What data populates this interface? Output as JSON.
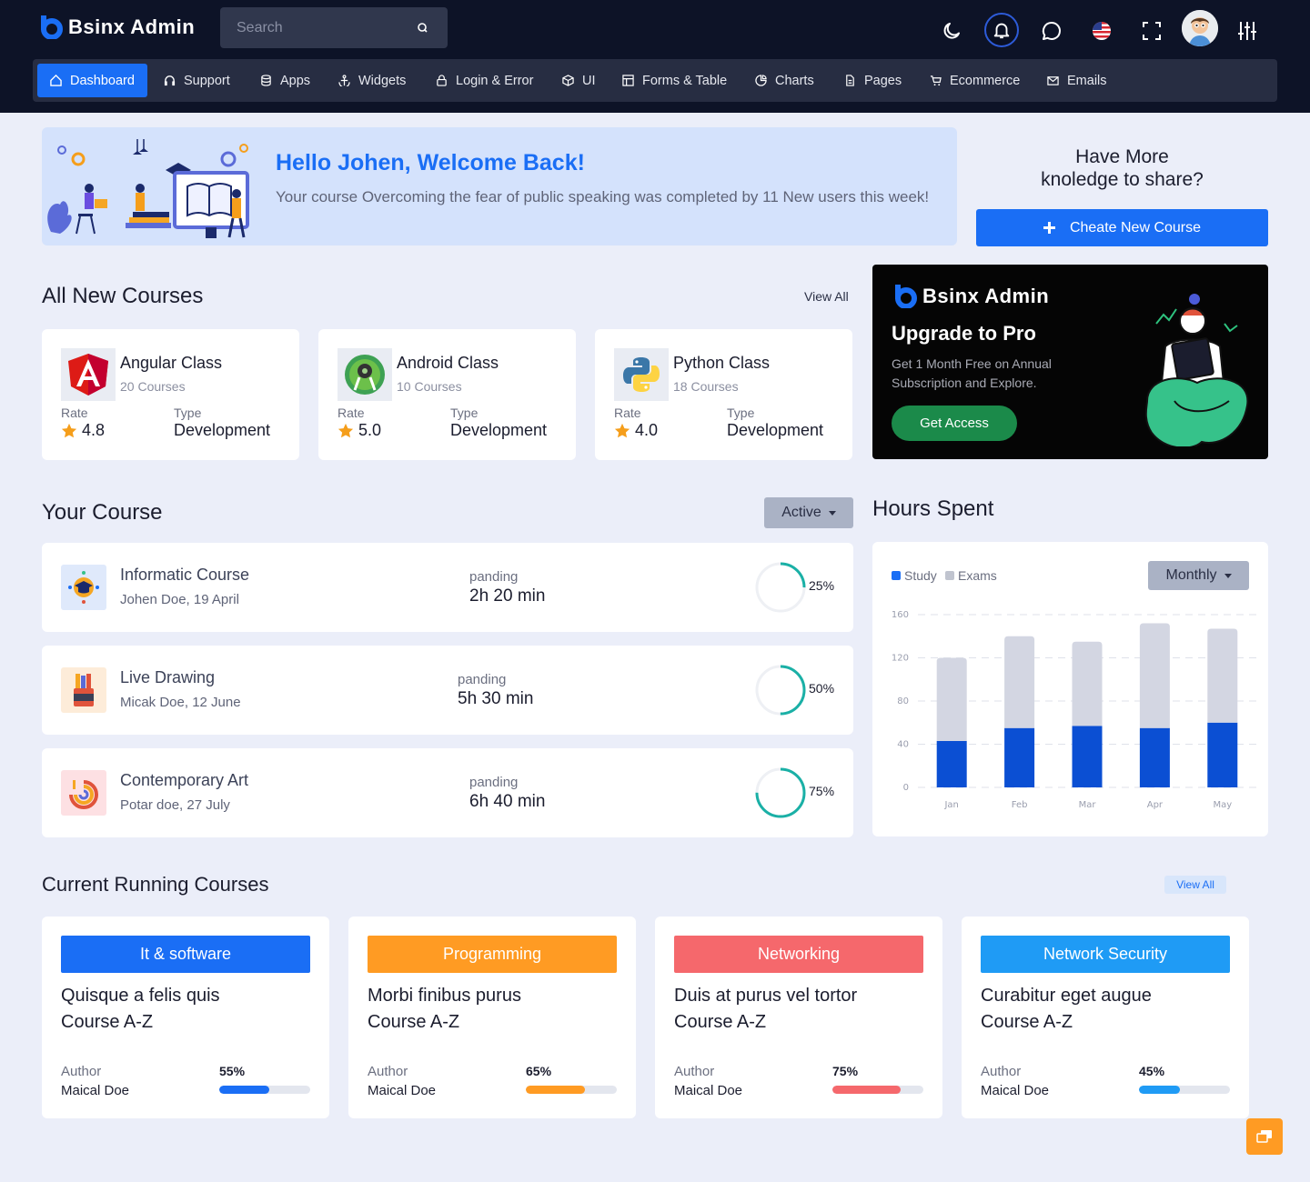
{
  "header": {
    "brand": "Bsinx Admin",
    "search_placeholder": "Search"
  },
  "nav": [
    {
      "label": "Dashboard"
    },
    {
      "label": "Support"
    },
    {
      "label": "Apps"
    },
    {
      "label": "Widgets"
    },
    {
      "label": "Login & Error"
    },
    {
      "label": "UI"
    },
    {
      "label": "Forms & Table"
    },
    {
      "label": "Charts"
    },
    {
      "label": "Pages"
    },
    {
      "label": "Ecommerce"
    },
    {
      "label": "Emails"
    }
  ],
  "welcome": {
    "title": "Hello Johen, Welcome Back!",
    "text": "Your course Overcoming the fear of public speaking was completed by 11 New users this week!"
  },
  "share": {
    "title_line1": "Have More",
    "title_line2": "knoledge to share?",
    "button": "Cheate New Course"
  },
  "new_courses": {
    "title": "All New Courses",
    "view_all": "View All",
    "rate_label": "Rate",
    "type_label": "Type",
    "items": [
      {
        "name": "Angular Class",
        "count": "20 Courses",
        "rate": "4.8",
        "type": "Development"
      },
      {
        "name": "Android Class",
        "count": "10 Courses",
        "rate": "5.0",
        "type": "Development"
      },
      {
        "name": "Python Class",
        "count": "18 Courses",
        "rate": "4.0",
        "type": "Development"
      }
    ]
  },
  "upgrade": {
    "brand": "Bsinx Admin",
    "title": "Upgrade to Pro",
    "text": "Get 1 Month Free on Annual Subscription and Explore.",
    "button": "Get Access"
  },
  "your_course": {
    "title": "Your Course",
    "filter": "Active",
    "items": [
      {
        "name": "Informatic Course",
        "meta": "Johen Doe, 19 April",
        "status": "panding",
        "time": "2h 20 min",
        "progress": 25,
        "progress_label": "25%"
      },
      {
        "name": "Live Drawing",
        "meta": "Micak Doe, 12 June",
        "status": "panding",
        "time": "5h 30 min",
        "progress": 50,
        "progress_label": "50%"
      },
      {
        "name": "Contemporary Art",
        "meta": "Potar doe, 27 July",
        "status": "panding",
        "time": "6h 40 min",
        "progress": 75,
        "progress_label": "75%"
      }
    ]
  },
  "hours": {
    "title": "Hours Spent",
    "filter": "Monthly",
    "legend": [
      "Study",
      "Exams"
    ]
  },
  "chart_data": {
    "type": "bar",
    "stacked": true,
    "categories": [
      "Jan",
      "Feb",
      "Mar",
      "Apr",
      "May"
    ],
    "series": [
      {
        "name": "Study",
        "values": [
          43,
          55,
          57,
          55,
          60
        ],
        "color": "#0b4fd3"
      },
      {
        "name": "Exams",
        "values": [
          77,
          85,
          78,
          97,
          87
        ],
        "color": "#d3d6e2"
      }
    ],
    "yticks": [
      0,
      40,
      80,
      120,
      160
    ],
    "ylim": [
      0,
      160
    ],
    "grid": true,
    "legend_position": "top-left"
  },
  "running": {
    "title": "Current Running Courses",
    "view_all": "View All",
    "author_label": "Author",
    "items": [
      {
        "category": "It & software",
        "color": "#1a6ef5",
        "line1": "Quisque a felis quis",
        "line2": "Course A-Z",
        "author": "Maical Doe",
        "progress": 55,
        "progress_label": "55%"
      },
      {
        "category": "Programming",
        "color": "#ff9b23",
        "line1": "Morbi finibus purus",
        "line2": "Course A-Z",
        "author": "Maical Doe",
        "progress": 65,
        "progress_label": "65%"
      },
      {
        "category": "Networking",
        "color": "#f5686c",
        "line1": "Duis at purus vel tortor",
        "line2": "Course A-Z",
        "author": "Maical Doe",
        "progress": 75,
        "progress_label": "75%"
      },
      {
        "category": "Network Security",
        "color": "#1f9bf5",
        "line1": "Curabitur eget augue",
        "line2": "Course A-Z",
        "author": "Maical Doe",
        "progress": 45,
        "progress_label": "45%"
      }
    ]
  },
  "icons": {
    "header": [
      "moon-icon",
      "bell-icon",
      "chat-icon",
      "us-flag-icon",
      "fullscreen-icon",
      "avatar",
      "settings-sliders-icon"
    ],
    "fab": "chat-widget-icon"
  }
}
